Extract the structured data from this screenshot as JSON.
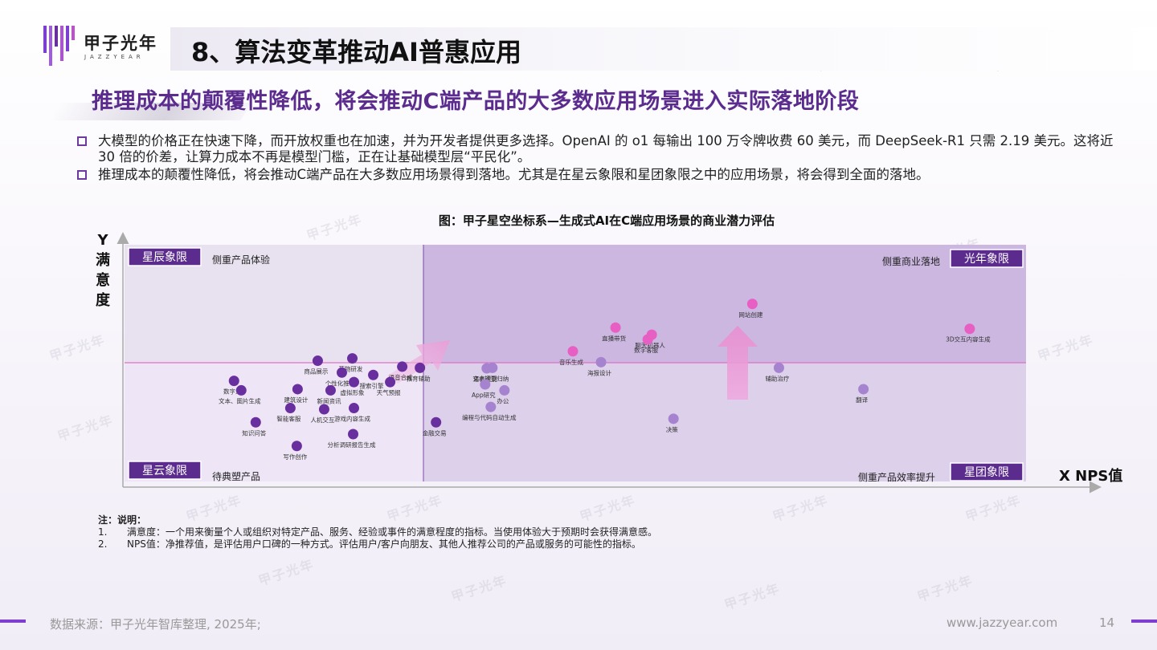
{
  "logo": {
    "text": "甲子光年",
    "sub": "JAZZYEAR"
  },
  "page_title": "8、算法变革推动AI普惠应用",
  "subtitle": "推理成本的颠覆性降低，将会推动C端产品的大多数应用场景进入实际落地阶段",
  "bullets": [
    "大模型的价格正在快速下降，而开放权重也在加速，并为开发者提供更多选择。OpenAI 的 o1 每输出 100 万令牌收费 60 美元，而 DeepSeek-R1 只需 2.19 美元。这将近 30 倍的价差，让算力成本不再是模型门槛，正在让基础模型层“平民化”。",
    "推理成本的颠覆性降低，将会推动C端产品在大多数应用场景得到落地。尤其是在星云象限和星团象限之中的应用场景，将会得到全面的落地。"
  ],
  "chart_data": {
    "type": "scatter",
    "title": "图：甲子星空坐标系—生成式AI在C端应用场景的商业潜力评估",
    "xlabel": "X NPS值",
    "ylabel": "Y满意度",
    "quadrants": {
      "top_left": {
        "badge": "星辰象限",
        "desc": "侧重产品体验"
      },
      "top_right": {
        "badge": "光年象限",
        "desc": "侧重商业落地"
      },
      "bottom_left": {
        "badge": "星云象限",
        "desc": "待典塑产品"
      },
      "bottom_right": {
        "badge": "星团象限",
        "desc": "侧重产品效率提升"
      }
    },
    "colors": {
      "dark": "#6a2f9e",
      "light": "#a583cf",
      "pink": "#e85fc4",
      "band": "#ede4f5",
      "right_fill": "#cbb7e0"
    },
    "points": [
      {
        "label": "网站创建",
        "x": 0.78,
        "y": 0.75,
        "color": "pink"
      },
      {
        "label": "直播带货",
        "x": 0.61,
        "y": 0.65,
        "color": "pink"
      },
      {
        "label": "聊天机器人",
        "x": 0.655,
        "y": 0.62,
        "color": "pink"
      },
      {
        "label": "数字客服",
        "x": 0.65,
        "y": 0.6,
        "color": "pink"
      },
      {
        "label": "音乐生成",
        "x": 0.557,
        "y": 0.55,
        "color": "pink"
      },
      {
        "label": "3D交互内容生成",
        "x": 1.05,
        "y": 0.645,
        "color": "pink"
      },
      {
        "label": "海报设计",
        "x": 0.592,
        "y": 0.504,
        "color": "light"
      },
      {
        "label": "辅助治疗",
        "x": 0.813,
        "y": 0.48,
        "color": "light"
      },
      {
        "label": "翻译",
        "x": 0.918,
        "y": 0.39,
        "color": "light"
      },
      {
        "label": "文本摘要归纳",
        "x": 0.457,
        "y": 0.48,
        "color": "light"
      },
      {
        "label": "办公",
        "x": 0.472,
        "y": 0.385,
        "color": "light"
      },
      {
        "label": "编程与代码自动生成",
        "x": 0.455,
        "y": 0.315,
        "color": "light"
      },
      {
        "label": "语音识别",
        "x": 0.45,
        "y": 0.478,
        "color": "light"
      },
      {
        "label": "App研究",
        "x": 0.448,
        "y": 0.41,
        "color": "light"
      },
      {
        "label": "决策",
        "x": 0.682,
        "y": 0.265,
        "color": "light"
      },
      {
        "label": "语音合成",
        "x": 0.345,
        "y": 0.485,
        "color": "dark"
      },
      {
        "label": "教育辅助",
        "x": 0.367,
        "y": 0.48,
        "color": "dark"
      },
      {
        "label": "商品展示",
        "x": 0.24,
        "y": 0.51,
        "color": "dark"
      },
      {
        "label": "药物研发",
        "x": 0.283,
        "y": 0.52,
        "color": "dark"
      },
      {
        "label": "个性化推荐",
        "x": 0.27,
        "y": 0.46,
        "color": "dark"
      },
      {
        "label": "搜索引擎",
        "x": 0.309,
        "y": 0.45,
        "color": "dark"
      },
      {
        "label": "天气预报",
        "x": 0.33,
        "y": 0.42,
        "color": "dark"
      },
      {
        "label": "数字人",
        "x": 0.136,
        "y": 0.425,
        "color": "dark"
      },
      {
        "label": "文本、图片生成",
        "x": 0.145,
        "y": 0.385,
        "color": "dark"
      },
      {
        "label": "建筑设计",
        "x": 0.215,
        "y": 0.39,
        "color": "dark"
      },
      {
        "label": "新闻资讯",
        "x": 0.256,
        "y": 0.385,
        "color": "dark"
      },
      {
        "label": "虚拟形象",
        "x": 0.285,
        "y": 0.42,
        "color": "dark"
      },
      {
        "label": "智能客服",
        "x": 0.206,
        "y": 0.31,
        "color": "dark"
      },
      {
        "label": "人机交互",
        "x": 0.248,
        "y": 0.305,
        "color": "dark"
      },
      {
        "label": "游戏内容生成",
        "x": 0.285,
        "y": 0.31,
        "color": "dark"
      },
      {
        "label": "知识问答",
        "x": 0.163,
        "y": 0.25,
        "color": "dark"
      },
      {
        "label": "金融交易",
        "x": 0.387,
        "y": 0.25,
        "color": "dark"
      },
      {
        "label": "分析调研报告生成",
        "x": 0.284,
        "y": 0.2,
        "color": "dark"
      },
      {
        "label": "写作创作",
        "x": 0.214,
        "y": 0.15,
        "color": "dark"
      }
    ]
  },
  "notes": {
    "title": "注：说明：",
    "items": [
      {
        "n": "1.",
        "text": "满意度：一个用来衡量个人或组织对特定产品、服务、经验或事件的满意程度的指标。当使用体验大于预期时会获得满意感。"
      },
      {
        "n": "2.",
        "text": "NPS值：净推荐值，是评估用户口碑的一种方式。评估用户/客户向朋友、其他人推荐公司的产品或服务的可能性的指标。"
      }
    ]
  },
  "footer": {
    "source": "数据来源：甲子光年智库整理, 2025年;",
    "site": "www.jazzyear.com",
    "page": "14"
  },
  "watermark": "甲子光年"
}
